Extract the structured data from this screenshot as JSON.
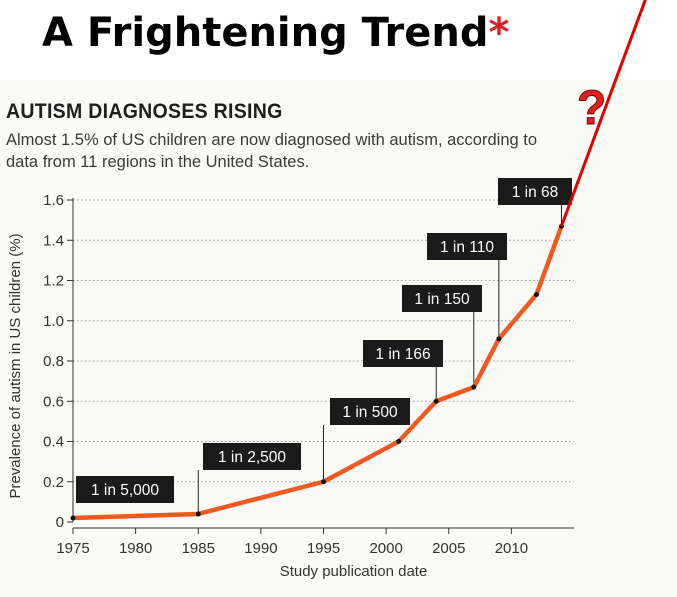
{
  "slide": {
    "title": "A Frightening Trend",
    "title_mark": "*",
    "question_mark": "?",
    "title_color": "#000000",
    "mark_color": "#e02020",
    "projection_color": "#e00000"
  },
  "chart_data": {
    "type": "line",
    "title": "AUTISM DIAGNOSES RISING",
    "subtitle": "Almost 1.5% of US children are now diagnosed with autism, according to data from 11 regions in the United States.",
    "xlabel": "Study publication date",
    "ylabel": "Prevalence of autism in US children (%)",
    "xlim": [
      1975,
      2015
    ],
    "ylim": [
      0,
      1.6
    ],
    "xticks": [
      1975,
      1980,
      1985,
      1990,
      1995,
      2000,
      2005,
      2010
    ],
    "yticks": [
      "0",
      "0.2",
      "0.4",
      "0.6",
      "0.8",
      "1.0",
      "1.2",
      "1.4",
      "1.6"
    ],
    "grid": true,
    "line_color": "#f05a1e",
    "series": [
      {
        "x": [
          1975,
          1985,
          1995,
          2001,
          2004,
          2007,
          2009,
          2012,
          2014
        ],
        "y": [
          0.02,
          0.04,
          0.2,
          0.4,
          0.6,
          0.67,
          0.91,
          1.13,
          1.47
        ]
      }
    ],
    "annotations": [
      {
        "text": "1 in 5,000",
        "x": 1975,
        "y": 0.02
      },
      {
        "text": "1 in 2,500",
        "x": 1985,
        "y": 0.04
      },
      {
        "text": "1 in 500",
        "x": 1995,
        "y": 0.2
      },
      {
        "text": "1 in 166",
        "x": 2004,
        "y": 0.6
      },
      {
        "text": "1 in 150",
        "x": 2007,
        "y": 0.67
      },
      {
        "text": "1 in 110",
        "x": 2009,
        "y": 0.91
      },
      {
        "text": "1 in 68",
        "x": 2014,
        "y": 1.47
      }
    ]
  }
}
